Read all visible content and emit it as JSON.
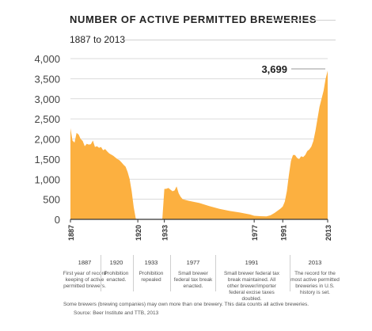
{
  "chart_data": {
    "type": "area",
    "title": "NUMBER OF ACTIVE PERMITTED BREWERIES",
    "subtitle": "1887 to 2013",
    "ylim": [
      0,
      4000
    ],
    "xlim": [
      1887,
      2013
    ],
    "y_ticks": [
      "0",
      "500",
      "1,000",
      "1,500",
      "2,000",
      "2,500",
      "3,000",
      "3,500",
      "4,000"
    ],
    "y_tick_values": [
      0,
      500,
      1000,
      1500,
      2000,
      2500,
      3000,
      3500,
      4000
    ],
    "x_ticks": [
      1887,
      1920,
      1933,
      1977,
      1991,
      2013
    ],
    "color": "#fcb040",
    "series": [
      {
        "x": [
          1887,
          1888,
          1889,
          1890,
          1891,
          1892,
          1893,
          1894,
          1895,
          1896,
          1897,
          1898,
          1899,
          1900,
          1901,
          1902,
          1903,
          1904,
          1905,
          1906,
          1907,
          1908,
          1909,
          1910,
          1911,
          1912,
          1913,
          1914,
          1915,
          1916,
          1917,
          1918,
          1919,
          1920,
          1921,
          1925,
          1932,
          1933,
          1934,
          1935,
          1936,
          1937,
          1938,
          1939,
          1940,
          1941,
          1942,
          1945,
          1950,
          1955,
          1960,
          1965,
          1970,
          1975,
          1977,
          1980,
          1983,
          1985,
          1987,
          1990,
          1991,
          1992,
          1993,
          1994,
          1995,
          1996,
          1997,
          1998,
          1999,
          2000,
          2001,
          2002,
          2003,
          2004,
          2005,
          2006,
          2007,
          2008,
          2009,
          2010,
          2011,
          2012,
          2013
        ],
        "y": [
          2269,
          1960,
          1910,
          2150,
          2110,
          2000,
          1950,
          1820,
          1880,
          1860,
          1870,
          1960,
          1800,
          1820,
          1780,
          1800,
          1720,
          1750,
          1690,
          1640,
          1610,
          1580,
          1540,
          1500,
          1470,
          1420,
          1360,
          1310,
          1180,
          1000,
          700,
          300,
          20,
          0,
          0,
          0,
          0,
          756,
          760,
          780,
          740,
          700,
          720,
          820,
          650,
          560,
          500,
          460,
          410,
          330,
          260,
          210,
          170,
          120,
          89,
          80,
          75,
          100,
          160,
          270,
          320,
          440,
          700,
          1100,
          1450,
          1600,
          1600,
          1530,
          1500,
          1570,
          1550,
          1600,
          1700,
          1740,
          1810,
          1950,
          2200,
          2500,
          2800,
          3000,
          3200,
          3500,
          3699
        ]
      }
    ],
    "callout_value": "3,699",
    "annotations": [
      {
        "year": "1887",
        "text": "First year of record keeping of active permitted brewers."
      },
      {
        "year": "1920",
        "text": "Prohibition enacted."
      },
      {
        "year": "1933",
        "text": "Prohibition repealed"
      },
      {
        "year": "1977",
        "text": "Small brewer federal tax break enacted."
      },
      {
        "year": "1991",
        "text": "Small brewer federal tax break maintained. All other brewer/importer federal excise taxes doubled."
      },
      {
        "year": "2013",
        "text": "The record for the most active permitted breweries in U.S. history is set."
      }
    ]
  },
  "footnote": "Some brewers (brewing companies) may own more than one brewery. This data counts all active breweries.",
  "source": "Source: Beer Institute and TTB, 2013"
}
